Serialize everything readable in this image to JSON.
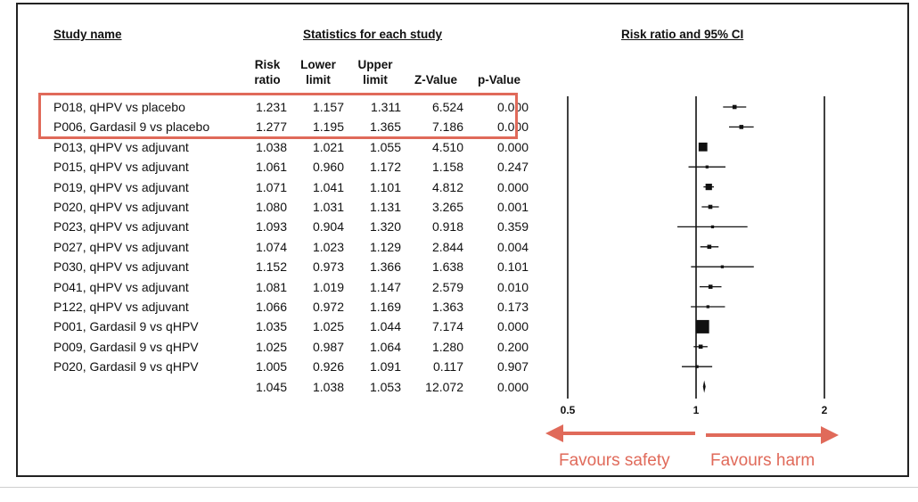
{
  "headers": {
    "study_name": "Study name",
    "stats": "Statistics for each study",
    "plot": "Risk ratio and 95% CI"
  },
  "columns": [
    [
      "Risk",
      "ratio"
    ],
    [
      "Lower",
      "limit"
    ],
    [
      "Upper",
      "limit"
    ],
    [
      "Z-Value"
    ],
    [
      "p-Value"
    ]
  ],
  "rows": [
    {
      "name": "P018, qHPV vs placebo",
      "rr": "1.231",
      "lower": "1.157",
      "upper": "1.311",
      "z": "6.524",
      "p": "0.000"
    },
    {
      "name": "P006, Gardasil 9 vs placebo",
      "rr": "1.277",
      "lower": "1.195",
      "upper": "1.365",
      "z": "7.186",
      "p": "0.000"
    },
    {
      "name": "P013, qHPV vs adjuvant",
      "rr": "1.038",
      "lower": "1.021",
      "upper": "1.055",
      "z": "4.510",
      "p": "0.000"
    },
    {
      "name": "P015, qHPV vs adjuvant",
      "rr": "1.061",
      "lower": "0.960",
      "upper": "1.172",
      "z": "1.158",
      "p": "0.247"
    },
    {
      "name": "P019, qHPV vs adjuvant",
      "rr": "1.071",
      "lower": "1.041",
      "upper": "1.101",
      "z": "4.812",
      "p": "0.000"
    },
    {
      "name": "P020, qHPV vs adjuvant",
      "rr": "1.080",
      "lower": "1.031",
      "upper": "1.131",
      "z": "3.265",
      "p": "0.001"
    },
    {
      "name": "P023, qHPV vs adjuvant",
      "rr": "1.093",
      "lower": "0.904",
      "upper": "1.320",
      "z": "0.918",
      "p": "0.359"
    },
    {
      "name": "P027, qHPV vs adjuvant",
      "rr": "1.074",
      "lower": "1.023",
      "upper": "1.129",
      "z": "2.844",
      "p": "0.004"
    },
    {
      "name": "P030, qHPV vs adjuvant",
      "rr": "1.152",
      "lower": "0.973",
      "upper": "1.366",
      "z": "1.638",
      "p": "0.101"
    },
    {
      "name": "P041, qHPV vs adjuvant",
      "rr": "1.081",
      "lower": "1.019",
      "upper": "1.147",
      "z": "2.579",
      "p": "0.010"
    },
    {
      "name": "P122, qHPV vs adjuvant",
      "rr": "1.066",
      "lower": "0.972",
      "upper": "1.169",
      "z": "1.363",
      "p": "0.173"
    },
    {
      "name": "P001, Gardasil 9 vs qHPV",
      "rr": "1.035",
      "lower": "1.025",
      "upper": "1.044",
      "z": "7.174",
      "p": "0.000"
    },
    {
      "name": "P009, Gardasil 9 vs qHPV",
      "rr": "1.025",
      "lower": "0.987",
      "upper": "1.064",
      "z": "1.280",
      "p": "0.200"
    },
    {
      "name": "P020, Gardasil 9 vs qHPV",
      "rr": "1.005",
      "lower": "0.926",
      "upper": "1.091",
      "z": "0.117",
      "p": "0.907"
    },
    {
      "name": "",
      "rr": "1.045",
      "lower": "1.038",
      "upper": "1.053",
      "z": "12.072",
      "p": "0.000"
    }
  ],
  "annotations": {
    "left": "Favours safety",
    "right": "Favours harm",
    "color": "#e06a5a"
  },
  "chart_data": {
    "type": "forest",
    "title": "Risk ratio and 95% CI",
    "x_scale": "log",
    "x_ticks": [
      "0.5",
      "1",
      "2"
    ],
    "xlim": [
      0.5,
      2
    ],
    "reference_line": 1,
    "highlighted_rows": [
      0,
      1
    ],
    "points": [
      {
        "rr": 1.231,
        "lower": 1.157,
        "upper": 1.311,
        "weight": 2
      },
      {
        "rr": 1.277,
        "lower": 1.195,
        "upper": 1.365,
        "weight": 2
      },
      {
        "rr": 1.038,
        "lower": 1.021,
        "upper": 1.055,
        "weight": 6
      },
      {
        "rr": 1.061,
        "lower": 0.96,
        "upper": 1.172,
        "weight": 1
      },
      {
        "rr": 1.071,
        "lower": 1.041,
        "upper": 1.101,
        "weight": 4
      },
      {
        "rr": 1.08,
        "lower": 1.031,
        "upper": 1.131,
        "weight": 2
      },
      {
        "rr": 1.093,
        "lower": 0.904,
        "upper": 1.32,
        "weight": 1
      },
      {
        "rr": 1.074,
        "lower": 1.023,
        "upper": 1.129,
        "weight": 2
      },
      {
        "rr": 1.152,
        "lower": 0.973,
        "upper": 1.366,
        "weight": 1
      },
      {
        "rr": 1.081,
        "lower": 1.019,
        "upper": 1.147,
        "weight": 2
      },
      {
        "rr": 1.066,
        "lower": 0.972,
        "upper": 1.169,
        "weight": 1
      },
      {
        "rr": 1.035,
        "lower": 1.025,
        "upper": 1.044,
        "weight": 10
      },
      {
        "rr": 1.025,
        "lower": 0.987,
        "upper": 1.064,
        "weight": 2
      },
      {
        "rr": 1.005,
        "lower": 0.926,
        "upper": 1.091,
        "weight": 1
      },
      {
        "rr": 1.045,
        "lower": 1.038,
        "upper": 1.053,
        "summary": true
      }
    ]
  }
}
